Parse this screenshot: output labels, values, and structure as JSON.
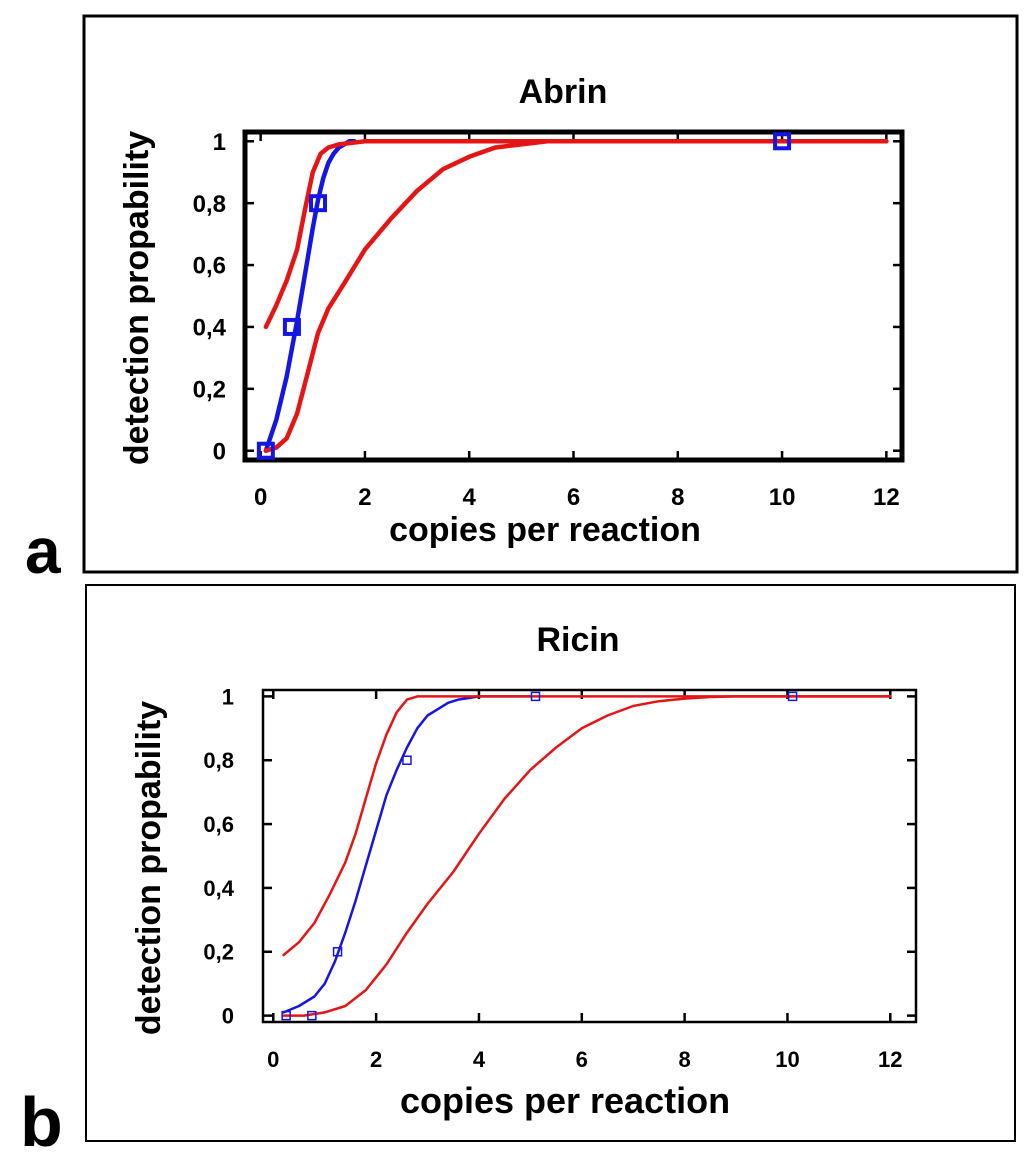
{
  "chart_data": [
    {
      "panel_label": "a",
      "type": "scatter",
      "title": "Abrin",
      "xlabel": "copies per reaction",
      "ylabel": "detection propability",
      "xlim": [
        -0.3,
        12.3
      ],
      "ylim": [
        -0.03,
        1.03
      ],
      "x_ticks": [
        "0",
        "2",
        "4",
        "6",
        "8",
        "10",
        "12"
      ],
      "y_ticks": [
        "0",
        "0,2",
        "0,4",
        "0,6",
        "0,8",
        "1"
      ],
      "grid": false,
      "marker_style": "large",
      "points": [
        {
          "x": 0.1,
          "y": 0.0
        },
        {
          "x": 0.6,
          "y": 0.4
        },
        {
          "x": 1.1,
          "y": 0.8
        },
        {
          "x": 10.0,
          "y": 1.0
        }
      ],
      "series": [
        {
          "role": "fit",
          "color": "#1515e6",
          "x": [
            0.1,
            0.3,
            0.5,
            0.7,
            0.9,
            1.0,
            1.1,
            1.2,
            1.3,
            1.4,
            1.5,
            1.6,
            1.7,
            1.8
          ],
          "y": [
            0.0,
            0.1,
            0.24,
            0.42,
            0.62,
            0.72,
            0.81,
            0.88,
            0.93,
            0.96,
            0.98,
            0.99,
            1.0,
            1.0
          ]
        },
        {
          "role": "upper-bound",
          "color": "#e61515",
          "x": [
            0.1,
            0.3,
            0.5,
            0.7,
            0.85,
            1.0,
            1.15,
            1.3,
            1.5,
            2.0,
            3.0,
            4.0,
            6.0,
            8.0,
            10.0,
            12.0
          ],
          "y": [
            0.4,
            0.47,
            0.55,
            0.65,
            0.78,
            0.9,
            0.96,
            0.98,
            0.99,
            1.0,
            1.0,
            1.0,
            1.0,
            1.0,
            1.0,
            1.0
          ]
        },
        {
          "role": "lower-bound",
          "color": "#e61515",
          "x": [
            0.1,
            0.3,
            0.5,
            0.7,
            0.9,
            1.1,
            1.3,
            1.6,
            2.0,
            2.5,
            3.0,
            3.5,
            4.0,
            4.5,
            5.0,
            5.5,
            6.0,
            8.0,
            10.0,
            12.0
          ],
          "y": [
            0.0,
            0.01,
            0.04,
            0.12,
            0.25,
            0.38,
            0.46,
            0.54,
            0.65,
            0.75,
            0.84,
            0.91,
            0.95,
            0.98,
            0.99,
            1.0,
            1.0,
            1.0,
            1.0,
            1.0
          ]
        }
      ]
    },
    {
      "panel_label": "b",
      "type": "scatter",
      "title": "Ricin",
      "xlabel": "copies per reaction",
      "ylabel": "detection propability",
      "xlim": [
        -0.2,
        12.5
      ],
      "ylim": [
        -0.02,
        1.02
      ],
      "x_ticks": [
        "0",
        "2",
        "4",
        "6",
        "8",
        "10",
        "12"
      ],
      "y_ticks": [
        "0",
        "0,2",
        "0,4",
        "0,6",
        "0,8",
        "1"
      ],
      "grid": false,
      "marker_style": "small",
      "points": [
        {
          "x": 0.25,
          "y": 0.0
        },
        {
          "x": 0.75,
          "y": 0.0
        },
        {
          "x": 1.25,
          "y": 0.2
        },
        {
          "x": 2.6,
          "y": 0.8
        },
        {
          "x": 5.1,
          "y": 1.0
        },
        {
          "x": 10.1,
          "y": 1.0
        }
      ],
      "series": [
        {
          "role": "fit",
          "color": "#1515e6",
          "x": [
            0.2,
            0.5,
            0.8,
            1.0,
            1.2,
            1.4,
            1.6,
            1.8,
            2.0,
            2.2,
            2.4,
            2.6,
            2.8,
            3.0,
            3.2,
            3.4,
            3.6,
            3.8,
            4.0,
            5.0
          ],
          "y": [
            0.01,
            0.03,
            0.06,
            0.1,
            0.17,
            0.26,
            0.36,
            0.47,
            0.58,
            0.69,
            0.77,
            0.84,
            0.9,
            0.94,
            0.96,
            0.98,
            0.99,
            0.995,
            1.0,
            1.0
          ]
        },
        {
          "role": "upper-bound",
          "color": "#e61515",
          "x": [
            0.2,
            0.5,
            0.8,
            1.1,
            1.4,
            1.6,
            1.8,
            2.0,
            2.2,
            2.4,
            2.6,
            2.8,
            3.0,
            4.0,
            6.0,
            8.0,
            10.0,
            12.0
          ],
          "y": [
            0.19,
            0.23,
            0.29,
            0.38,
            0.48,
            0.57,
            0.68,
            0.79,
            0.88,
            0.95,
            0.99,
            1.0,
            1.0,
            1.0,
            1.0,
            1.0,
            1.0,
            1.0
          ]
        },
        {
          "role": "lower-bound",
          "color": "#e61515",
          "x": [
            0.2,
            0.6,
            1.0,
            1.4,
            1.8,
            2.2,
            2.6,
            3.0,
            3.5,
            4.0,
            4.5,
            5.0,
            5.5,
            6.0,
            6.5,
            7.0,
            7.5,
            8.0,
            8.5,
            9.0,
            10.0,
            12.0
          ],
          "y": [
            0.0,
            0.0,
            0.01,
            0.03,
            0.08,
            0.16,
            0.26,
            0.35,
            0.45,
            0.57,
            0.68,
            0.77,
            0.84,
            0.9,
            0.94,
            0.97,
            0.985,
            0.993,
            0.998,
            1.0,
            1.0,
            1.0
          ]
        }
      ]
    }
  ]
}
